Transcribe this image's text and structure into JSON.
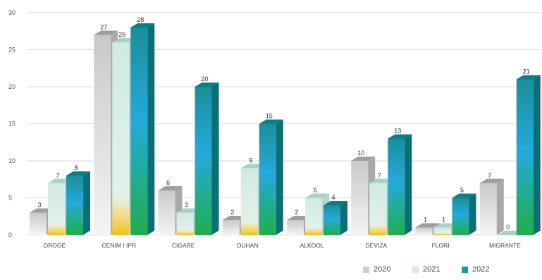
{
  "chart_data": {
    "type": "bar",
    "title": "",
    "xlabel": "",
    "ylabel": "",
    "ylim": [
      0,
      30
    ],
    "yticks": [
      0,
      5,
      10,
      15,
      20,
      25,
      30
    ],
    "grid": true,
    "legend_position": "bottom-right",
    "categories": [
      "DROGË",
      "CENIM I IPR",
      "CIGARE",
      "DUHAN",
      "ALKOOL",
      "DEVIZA",
      "FLORI",
      "MIGRANTË"
    ],
    "series": [
      {
        "name": "2020",
        "values": [
          3,
          27,
          6,
          2,
          2,
          10,
          1,
          7
        ],
        "color": "#d0d0d0"
      },
      {
        "name": "2021",
        "values": [
          7,
          26,
          3,
          9,
          5,
          7,
          1,
          0
        ],
        "color": "#cfe8e2"
      },
      {
        "name": "2022",
        "values": [
          8,
          28,
          20,
          15,
          4,
          13,
          5,
          21
        ],
        "color": "#1a9aa6"
      }
    ]
  }
}
